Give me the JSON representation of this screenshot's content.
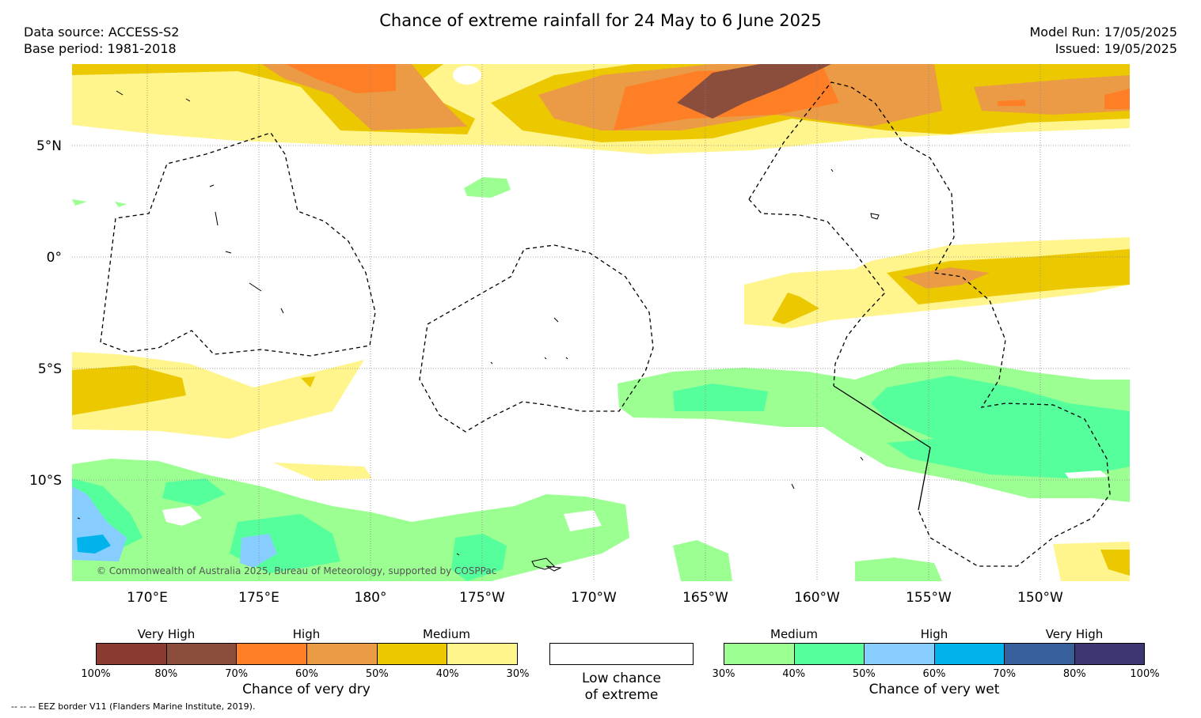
{
  "title": "Chance of extreme rainfall for 24 May to 6 June 2025",
  "meta_left": [
    "Data source: ACCESS-S2",
    "Base period: 1981-2018"
  ],
  "meta_right": [
    "Model Run: 17/05/2025",
    "Issued: 19/05/2025"
  ],
  "copyright": "© Commonwealth of Australia 2025, Bureau of Meteorology, supported by COSPPac",
  "footnote": "--  --  -- EEZ border V11 (Flanders Marine Institute, 2019).",
  "lat_labels": [
    "5°N",
    "0°",
    "5°S",
    "10°S"
  ],
  "lon_labels": [
    "170°E",
    "175°E",
    "180°",
    "175°W",
    "170°W",
    "165°W",
    "160°W",
    "155°W",
    "150°W"
  ],
  "dry_legend": {
    "levels": [
      "Very High",
      "High",
      "Medium"
    ],
    "ticks": [
      "100%",
      "80%",
      "70%",
      "60%",
      "50%",
      "40%",
      "30%"
    ],
    "title": "Chance of very dry",
    "colors": [
      "#8b3a32",
      "#8b4e3c",
      "#ff7f27",
      "#eb9b46",
      "#ebc800",
      "#fff58c"
    ]
  },
  "low_legend": {
    "line1": "Low chance",
    "line2": "of extreme",
    "color": "#ffffff"
  },
  "wet_legend": {
    "levels": [
      "Medium",
      "High",
      "Very High"
    ],
    "ticks": [
      "30%",
      "40%",
      "50%",
      "60%",
      "70%",
      "80%",
      "100%"
    ],
    "title": "Chance of very wet",
    "colors": [
      "#9bff91",
      "#55ff9b",
      "#87cdff",
      "#00b4eb",
      "#375f9b",
      "#3c3773"
    ]
  }
}
